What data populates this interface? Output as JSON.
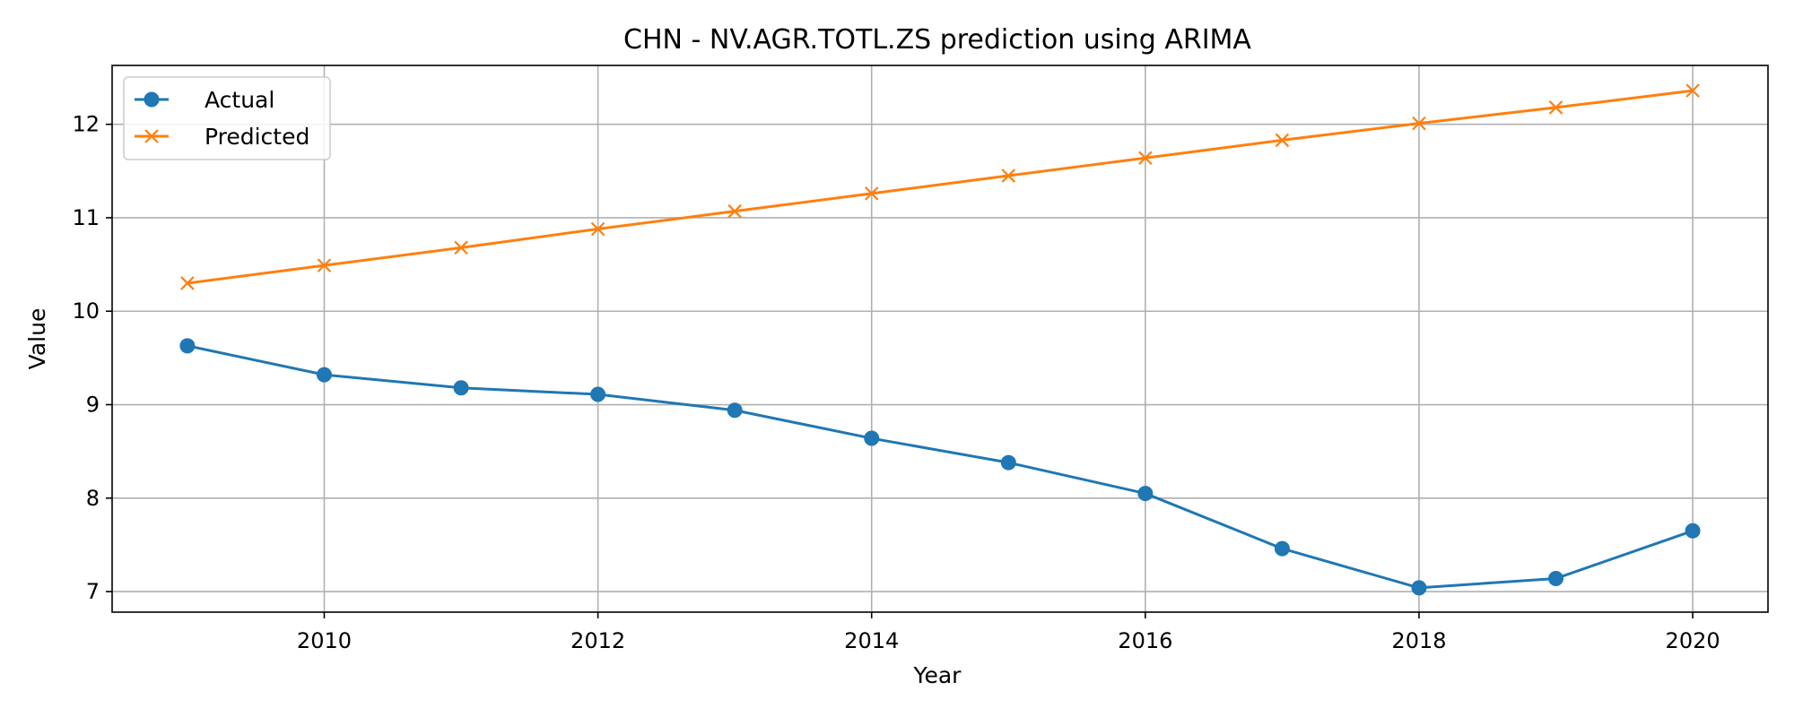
{
  "chart_data": {
    "type": "line",
    "title": "CHN - NV.AGR.TOTL.ZS prediction using ARIMA",
    "xlabel": "Year",
    "ylabel": "Value",
    "x": [
      2009,
      2010,
      2011,
      2012,
      2013,
      2014,
      2015,
      2016,
      2017,
      2018,
      2019,
      2020
    ],
    "x_ticks": [
      2010,
      2012,
      2014,
      2016,
      2018,
      2020
    ],
    "y_ticks": [
      7,
      8,
      9,
      10,
      11,
      12
    ],
    "xlim": [
      2008.45,
      2020.55
    ],
    "ylim": [
      6.78,
      12.63
    ],
    "grid": true,
    "legend_position": "top-left",
    "series": [
      {
        "name": "Actual",
        "color": "#1f77b4",
        "marker": "circle",
        "values": [
          9.63,
          9.32,
          9.18,
          9.11,
          8.94,
          8.64,
          8.38,
          8.05,
          7.46,
          7.04,
          7.14,
          7.65
        ]
      },
      {
        "name": "Predicted",
        "color": "#ff7f0e",
        "marker": "x",
        "values": [
          10.3,
          10.49,
          10.68,
          10.88,
          11.07,
          11.26,
          11.45,
          11.64,
          11.83,
          12.01,
          12.18,
          12.36
        ]
      }
    ]
  }
}
